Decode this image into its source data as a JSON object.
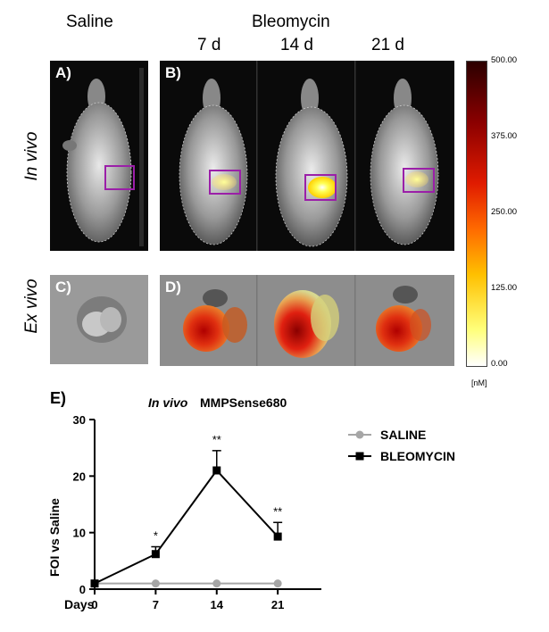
{
  "header": {
    "saline": "Saline",
    "bleomycin": "Bleomycin",
    "days": [
      "7 d",
      "14 d",
      "21 d"
    ]
  },
  "row_labels": {
    "in_vivo": "In vivo",
    "ex_vivo": "Ex vivo"
  },
  "panels": {
    "a": "A)",
    "b": "B)",
    "c": "C)",
    "d": "D)",
    "e": "E)"
  },
  "colorbar": {
    "ticks": [
      "500.00",
      "375.00",
      "250.00",
      "125.00",
      "0.00"
    ],
    "unit": "[nM]",
    "colors": [
      "#2b0000",
      "#8b0000",
      "#e01b00",
      "#ff6a00",
      "#ffc000",
      "#ffff7a",
      "#ffffff"
    ]
  },
  "chart_data": {
    "type": "line",
    "title_italic": "In vivo",
    "title_rest": "MMPSense680",
    "xlabel": "Days",
    "ylabel": "FOI vs Saline",
    "x": [
      0,
      7,
      14,
      21
    ],
    "xticks": [
      "0",
      "7",
      "14",
      "21"
    ],
    "xlim": [
      0,
      26
    ],
    "ylim": [
      0,
      30
    ],
    "yticks": [
      "0",
      "10",
      "20",
      "30"
    ],
    "series": [
      {
        "name": "SALINE",
        "values": [
          1,
          1,
          1,
          1
        ],
        "errors": [
          0,
          0,
          0,
          0
        ],
        "color": "#a6a6a6",
        "marker": "circle"
      },
      {
        "name": "BLEOMYCIN",
        "values": [
          1,
          6.2,
          21,
          9.3
        ],
        "errors": [
          0,
          1.3,
          3.5,
          2.5
        ],
        "color": "#000000",
        "marker": "square"
      }
    ],
    "annotations": [
      {
        "x": 7,
        "text": "*"
      },
      {
        "x": 14,
        "text": "**"
      },
      {
        "x": 21,
        "text": "**"
      }
    ]
  }
}
